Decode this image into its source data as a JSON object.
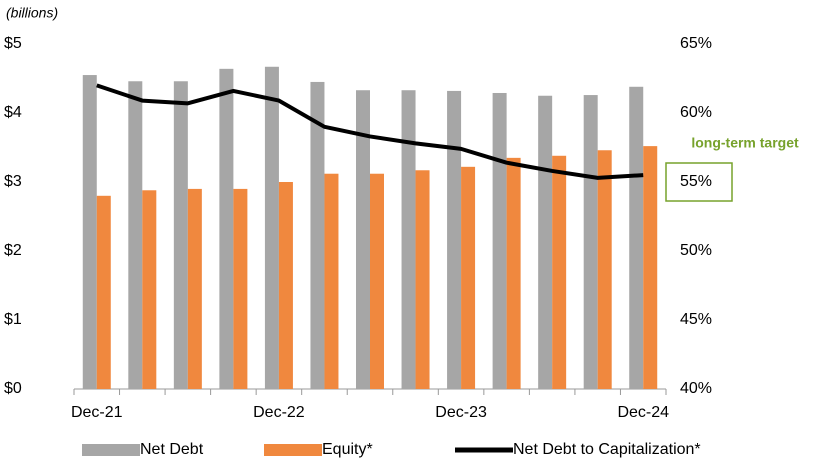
{
  "chart_data": {
    "type": "bar",
    "y_label": "(billions)",
    "categories": [
      "Dec-21",
      null,
      null,
      null,
      "Dec-22",
      null,
      null,
      null,
      "Dec-23",
      null,
      null,
      null,
      "Dec-24"
    ],
    "series": [
      {
        "name": "Net Debt",
        "color": "#a6a6a6",
        "type": "bar",
        "values": [
          4.55,
          4.46,
          4.46,
          4.64,
          4.67,
          4.45,
          4.33,
          4.33,
          4.32,
          4.29,
          4.25,
          4.26,
          4.38
        ]
      },
      {
        "name": "Equity*",
        "color": "#f0883e",
        "type": "bar",
        "values": [
          2.8,
          2.88,
          2.9,
          2.9,
          3.0,
          3.12,
          3.12,
          3.17,
          3.22,
          3.35,
          3.38,
          3.46,
          3.52
        ]
      },
      {
        "name": "Net Debt to Capitalization*",
        "color": "#000000",
        "type": "line",
        "axis": "y2",
        "values": [
          62.0,
          60.9,
          60.7,
          61.6,
          60.9,
          59.0,
          58.3,
          57.8,
          57.4,
          56.4,
          55.8,
          55.3,
          55.5
        ]
      }
    ],
    "ylim": [
      0,
      5
    ],
    "yticks": [
      {
        "value": 0,
        "label": "$0"
      },
      {
        "value": 1,
        "label": "$1"
      },
      {
        "value": 2,
        "label": "$2"
      },
      {
        "value": 3,
        "label": "$3"
      },
      {
        "value": 4,
        "label": "$4"
      },
      {
        "value": 5,
        "label": "$5"
      }
    ],
    "y2lim": [
      40,
      65
    ],
    "y2ticks": [
      {
        "value": 40,
        "label": "40%"
      },
      {
        "value": 45,
        "label": "45%"
      },
      {
        "value": 50,
        "label": "50%"
      },
      {
        "value": 55,
        "label": "55%"
      },
      {
        "value": 60,
        "label": "60%"
      },
      {
        "value": 65,
        "label": "65%"
      }
    ],
    "target_annotation": {
      "text": "long-term target",
      "value": 55,
      "color": "#77a22c"
    },
    "legend": "bottom"
  }
}
